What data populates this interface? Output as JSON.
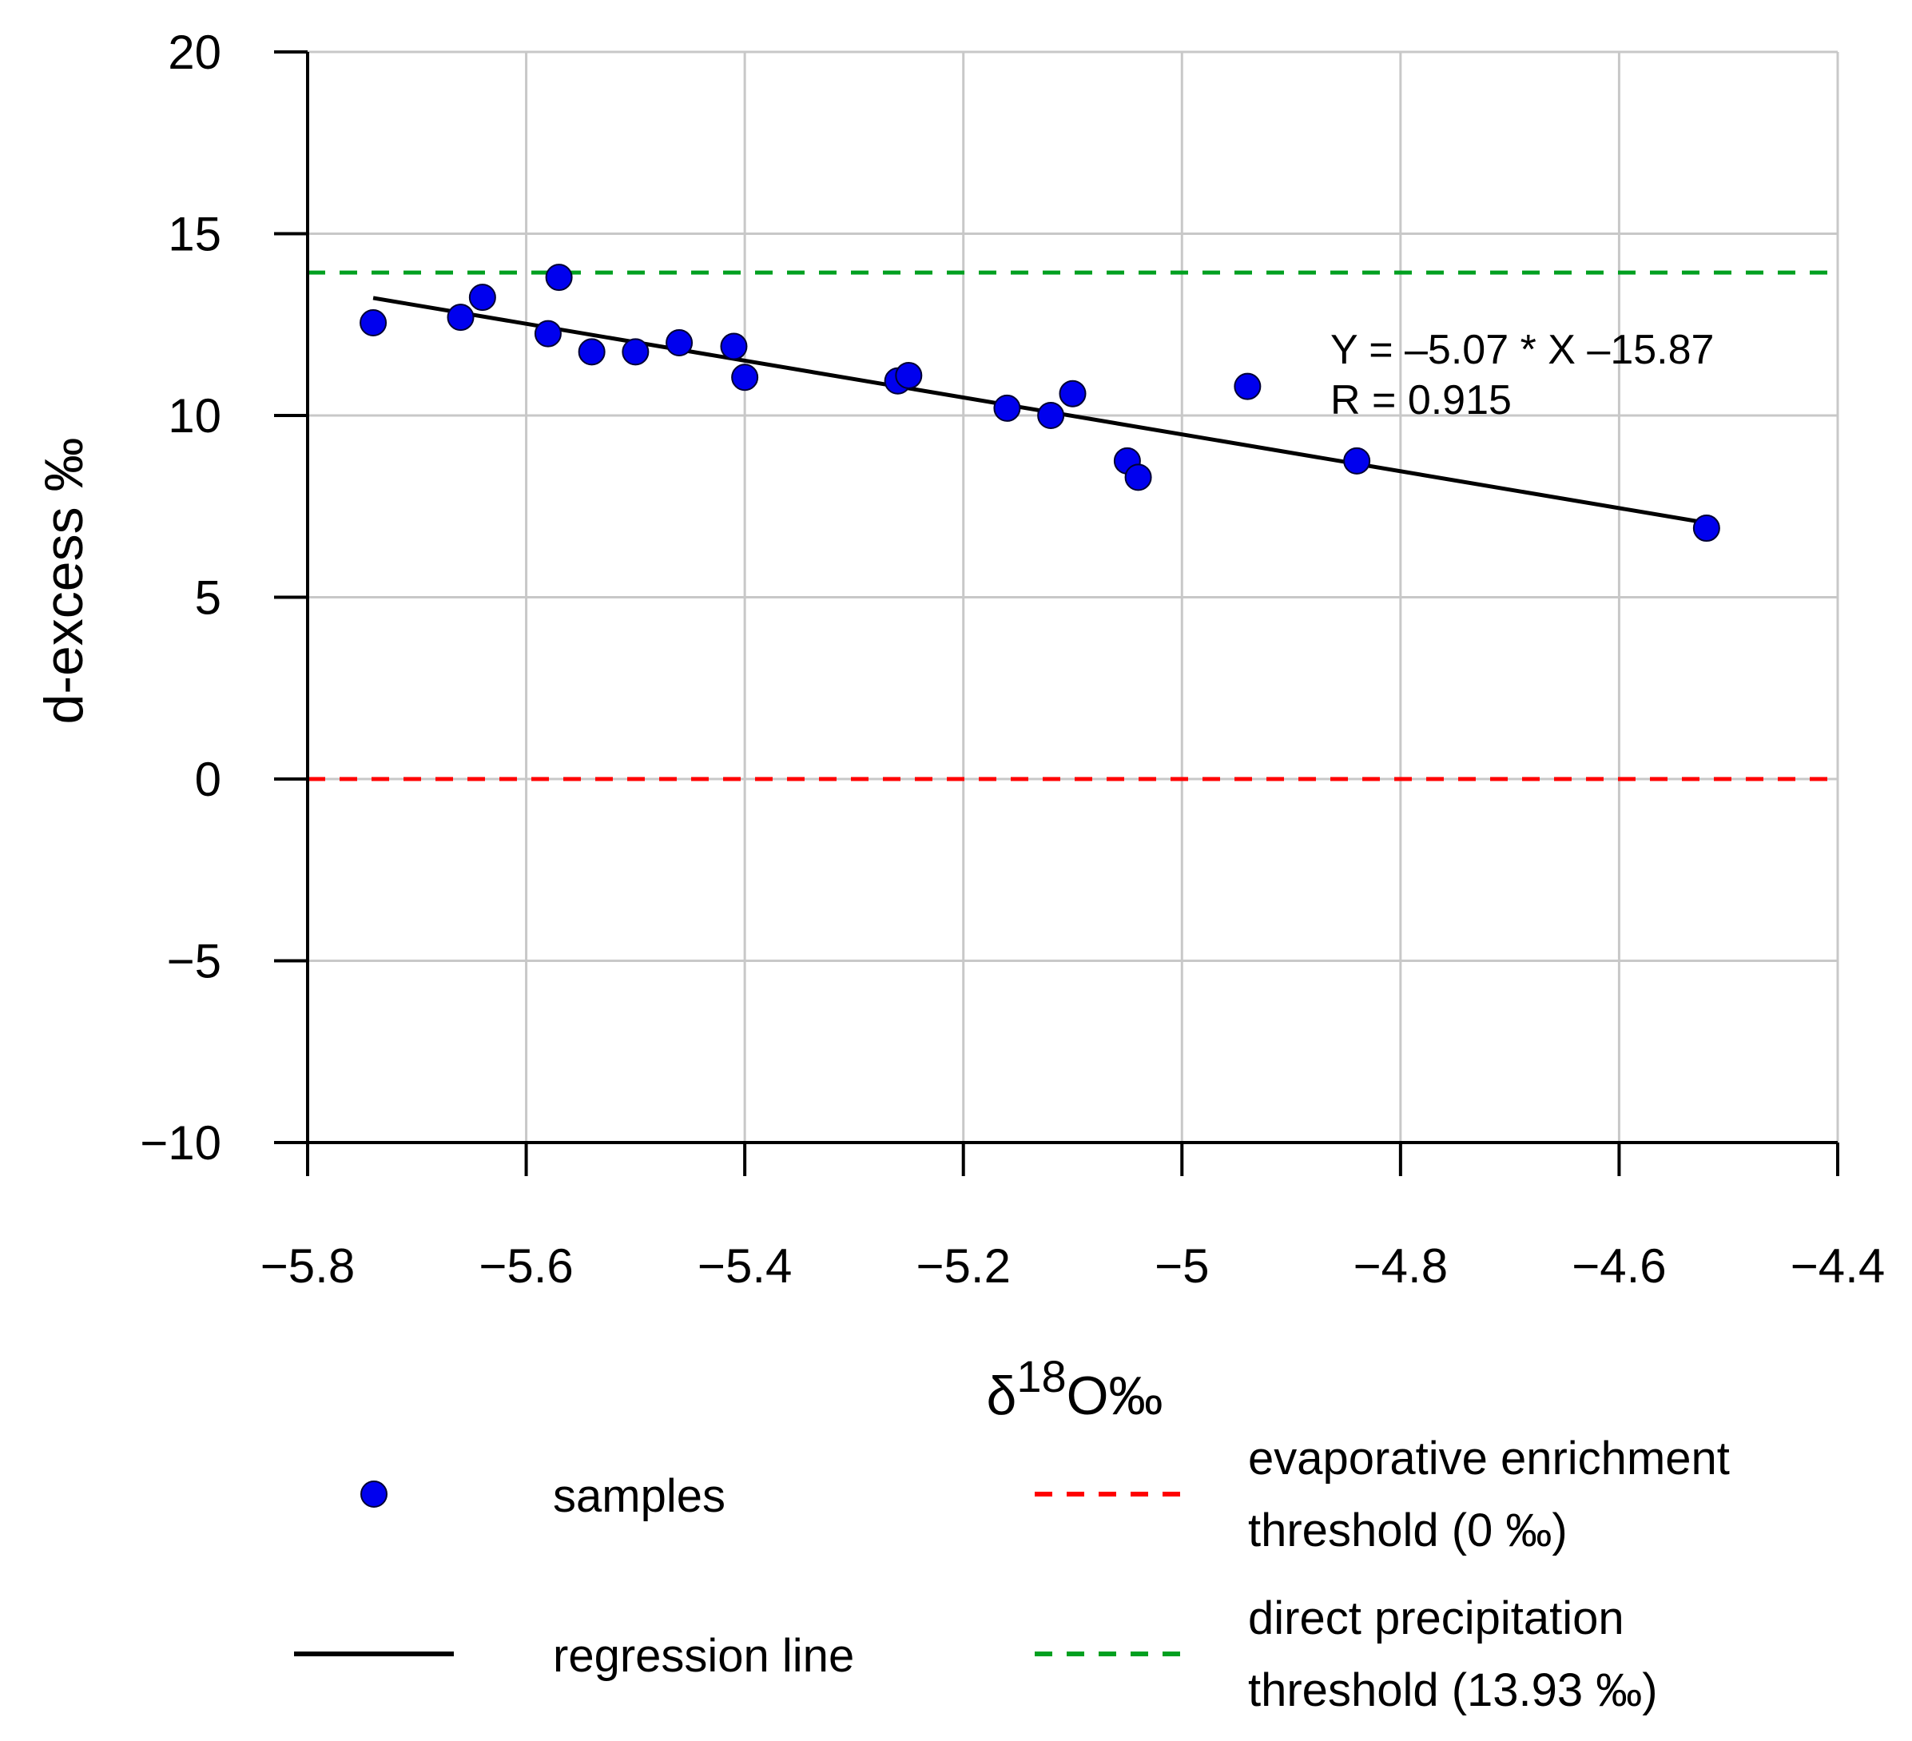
{
  "chart_data": {
    "type": "scatter",
    "title": "",
    "xlabel": {
      "prefix": "δ",
      "sup": "18",
      "suffix": "O‰"
    },
    "ylabel": "d-excess ‰",
    "xlim": [
      -5.8,
      -4.4
    ],
    "ylim": [
      -10,
      20
    ],
    "xticks": [
      -5.8,
      -5.6,
      -5.4,
      -5.2,
      -5,
      -4.8,
      -4.6,
      -4.4
    ],
    "yticks": [
      -10,
      -5,
      0,
      5,
      10,
      15,
      20
    ],
    "xtick_labels": [
      "−5.8",
      "−5.6",
      "−5.4",
      "−5.2",
      "−5",
      "−4.8",
      "−4.6",
      "−4.4"
    ],
    "ytick_labels": [
      "−10",
      "−5",
      "0",
      "5",
      "10",
      "15",
      "20"
    ],
    "grid": true,
    "samples": {
      "name": "samples",
      "color": "#0000ee",
      "points": [
        [
          -5.74,
          12.55
        ],
        [
          -5.66,
          12.7
        ],
        [
          -5.64,
          13.25
        ],
        [
          -5.58,
          12.25
        ],
        [
          -5.57,
          13.8
        ],
        [
          -5.54,
          11.75
        ],
        [
          -5.5,
          11.75
        ],
        [
          -5.46,
          12.0
        ],
        [
          -5.41,
          11.9
        ],
        [
          -5.4,
          11.05
        ],
        [
          -5.26,
          10.95
        ],
        [
          -5.25,
          11.1
        ],
        [
          -5.16,
          10.2
        ],
        [
          -5.12,
          10.0
        ],
        [
          -5.1,
          10.6
        ],
        [
          -5.05,
          8.75
        ],
        [
          -5.04,
          8.3
        ],
        [
          -4.94,
          10.8
        ],
        [
          -4.84,
          8.75
        ],
        [
          -4.52,
          6.9
        ]
      ]
    },
    "regression": {
      "name": "regression line",
      "color": "#000000",
      "slope": -5.07,
      "intercept": -15.87,
      "x_range": [
        -5.74,
        -4.52
      ]
    },
    "thresholds": [
      {
        "name": "evaporative enrichment threshold (0 ‰)",
        "label_lines": [
          "evaporative enrichment",
          "threshold (0 ‰)"
        ],
        "value": 0,
        "color": "#ff0000"
      },
      {
        "name": "direct precipitation threshold (13.93 ‰)",
        "label_lines": [
          "direct precipitation",
          "threshold (13.93 ‰)"
        ],
        "value": 13.93,
        "color": "#00a020"
      }
    ],
    "annotations": [
      "Y = –5.07 * X –15.87",
      "R = 0.915"
    ],
    "legend": {
      "position": "bottom",
      "samples_label": "samples",
      "regression_label": "regression line"
    }
  }
}
